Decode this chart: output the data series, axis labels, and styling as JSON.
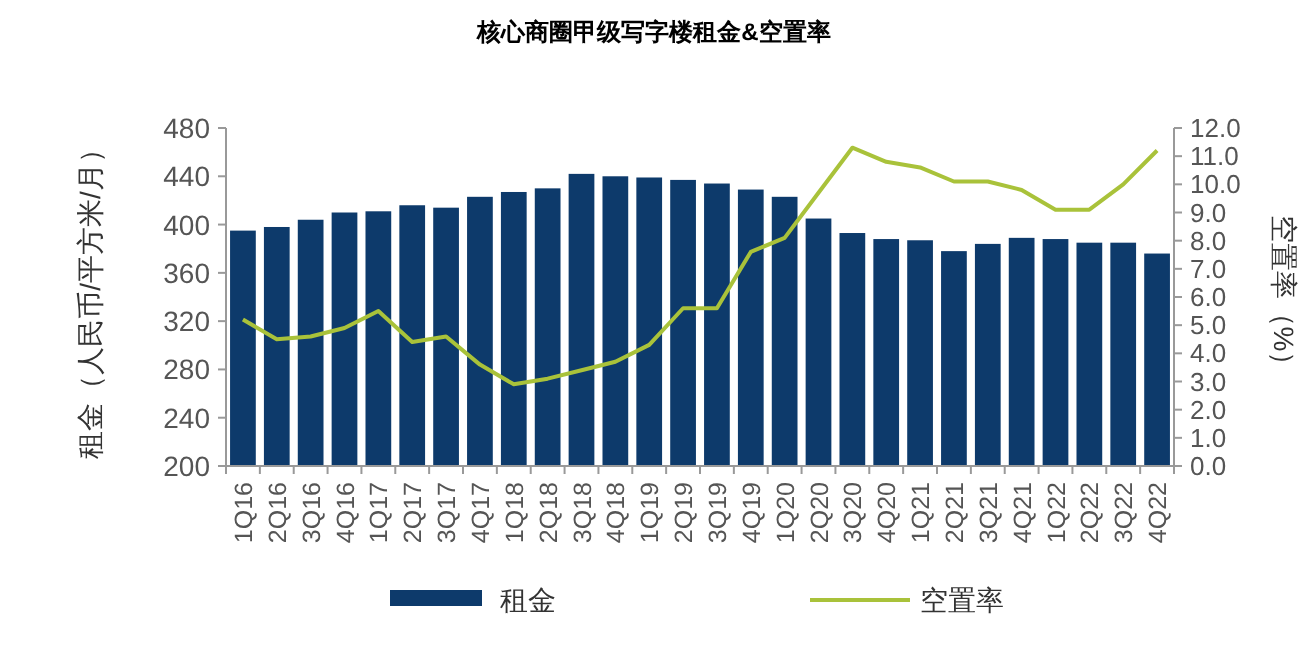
{
  "chart_data": {
    "type": "bar",
    "title": "核心商圈甲级写字楼租金&空置率",
    "ylabel": "租金（人民币/平方米/月）",
    "y2label": "空置率（%）",
    "categories": [
      "1Q16",
      "2Q16",
      "3Q16",
      "4Q16",
      "1Q17",
      "2Q17",
      "3Q17",
      "4Q17",
      "1Q18",
      "2Q18",
      "3Q18",
      "4Q18",
      "1Q19",
      "2Q19",
      "3Q19",
      "4Q19",
      "1Q20",
      "2Q20",
      "3Q20",
      "4Q20",
      "1Q21",
      "2Q21",
      "3Q21",
      "4Q21",
      "1Q22",
      "2Q22",
      "3Q22",
      "4Q22"
    ],
    "series": [
      {
        "name": "租金",
        "color": "#0d3a6b",
        "values": [
          395,
          398,
          404,
          410,
          411,
          416,
          414,
          423,
          427,
          430,
          442,
          440,
          439,
          437,
          434,
          429,
          423,
          405,
          393,
          388,
          387,
          378,
          384,
          389,
          388,
          385,
          385,
          376
        ]
      },
      {
        "name": "空置率",
        "type": "line",
        "axis": "y2",
        "color": "#a9c23a",
        "values": [
          5.2,
          4.5,
          4.6,
          4.9,
          5.5,
          4.4,
          4.6,
          3.6,
          2.9,
          3.1,
          3.4,
          3.7,
          4.3,
          5.6,
          5.6,
          7.6,
          8.1,
          9.7,
          11.3,
          10.8,
          10.6,
          10.1,
          10.1,
          9.8,
          9.1,
          9.1,
          10.0,
          11.2
        ]
      }
    ],
    "ylim": [
      200,
      480
    ],
    "yticks": [
      200,
      240,
      280,
      320,
      360,
      400,
      440,
      480
    ],
    "y2lim": [
      0,
      12
    ],
    "y2ticks": [
      {
        "value": 0,
        "label": "0.0"
      },
      {
        "value": 1,
        "label": "1.0"
      },
      {
        "value": 2,
        "label": "2.0"
      },
      {
        "value": 3,
        "label": "3.0"
      },
      {
        "value": 4,
        "label": "4.0"
      },
      {
        "value": 5,
        "label": "5.0"
      },
      {
        "value": 6,
        "label": "6.0"
      },
      {
        "value": 7,
        "label": "7.0"
      },
      {
        "value": 8,
        "label": "8.0"
      },
      {
        "value": 9,
        "label": "9.0"
      },
      {
        "value": 10,
        "label": "10.0"
      },
      {
        "value": 11,
        "label": "11.0"
      },
      {
        "value": 12,
        "label": "12.0"
      }
    ],
    "legend": "bottom"
  }
}
